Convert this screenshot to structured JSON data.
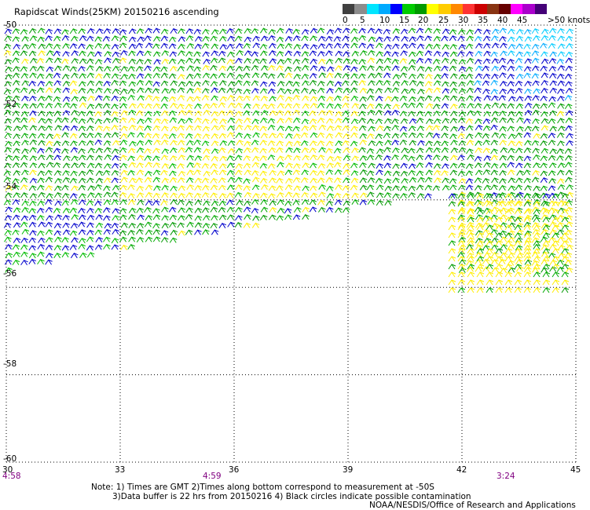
{
  "title": "Rapidscat Winds(25KM) 20150216 ascending",
  "colorbar": {
    "labels": [
      "0",
      "5",
      "10",
      "15",
      "20",
      "25",
      "30",
      "35",
      "40",
      "45"
    ],
    "unit_label": ">50 knots",
    "colors": [
      "#404040",
      "#8c8c8c",
      "#00e5ff",
      "#00aaff",
      "#0000ff",
      "#00cc00",
      "#009900",
      "#ffff00",
      "#ffcc00",
      "#ff8800",
      "#ff3333",
      "#cc0000",
      "#883311",
      "#660000",
      "#ff00ff",
      "#aa00cc",
      "#440077"
    ]
  },
  "map": {
    "lon_range": [
      30,
      45
    ],
    "lat_range": [
      -60,
      -50
    ],
    "lat_labels": [
      "-50",
      "-52",
      "-54",
      "-56",
      "-58",
      "-60"
    ],
    "lon_labels": [
      "30",
      "33",
      "36",
      "39",
      "42",
      "45"
    ],
    "time_labels": [
      "4:58",
      "4:59",
      "3:24"
    ]
  },
  "notes": [
    "Note: 1) Times are GMT 2)Times along bottom correspond to measurement at -50S",
    "3)Data buffer is 22 hrs from 20150216 4) Black circles indicate possible contamination"
  ],
  "credit": "NOAA/NESDIS/Office of Research and Applications"
}
